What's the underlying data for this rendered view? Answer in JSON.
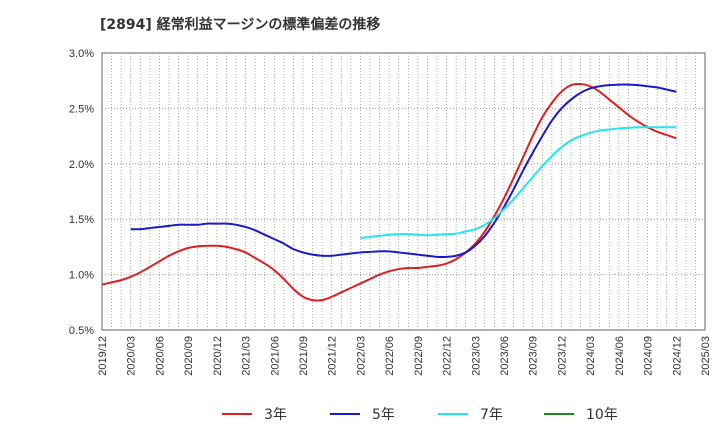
{
  "title": "[2894]  経常利益マージンの標準偏差の推移",
  "chart_data": {
    "type": "line",
    "title": "[2894]  経常利益マージンの標準偏差の推移",
    "xlabel": "",
    "ylabel": "",
    "x_ticks": [
      "2019/12",
      "2020/03",
      "2020/06",
      "2020/09",
      "2020/12",
      "2021/03",
      "2021/06",
      "2021/09",
      "2021/12",
      "2022/03",
      "2022/06",
      "2022/09",
      "2022/12",
      "2023/03",
      "2023/06",
      "2023/09",
      "2023/12",
      "2024/03",
      "2024/06",
      "2024/09",
      "2024/12",
      "2025/03"
    ],
    "y_ticks": [
      "0.5%",
      "1.0%",
      "1.5%",
      "2.0%",
      "2.5%",
      "3.0%"
    ],
    "ylim": [
      0.5,
      3.0
    ],
    "xlim": [
      "2019/12",
      "2025/03"
    ],
    "grid": true,
    "legend_position": "bottom",
    "series": [
      {
        "name": "3年",
        "color": "#e02020",
        "points": [
          [
            "2019/12",
            0.91
          ],
          [
            "2020/01",
            0.93
          ],
          [
            "2020/02",
            0.95
          ],
          [
            "2020/03",
            0.98
          ],
          [
            "2020/04",
            1.02
          ],
          [
            "2020/05",
            1.07
          ],
          [
            "2020/06",
            1.12
          ],
          [
            "2020/07",
            1.17
          ],
          [
            "2020/08",
            1.21
          ],
          [
            "2020/09",
            1.24
          ],
          [
            "2020/10",
            1.255
          ],
          [
            "2020/11",
            1.26
          ],
          [
            "2020/12",
            1.26
          ],
          [
            "2021/01",
            1.25
          ],
          [
            "2021/02",
            1.23
          ],
          [
            "2021/03",
            1.2
          ],
          [
            "2021/04",
            1.15
          ],
          [
            "2021/05",
            1.1
          ],
          [
            "2021/06",
            1.04
          ],
          [
            "2021/07",
            0.96
          ],
          [
            "2021/08",
            0.87
          ],
          [
            "2021/09",
            0.8
          ],
          [
            "2021/10",
            0.77
          ],
          [
            "2021/11",
            0.77
          ],
          [
            "2021/12",
            0.8
          ],
          [
            "2022/01",
            0.84
          ],
          [
            "2022/02",
            0.88
          ],
          [
            "2022/03",
            0.92
          ],
          [
            "2022/04",
            0.96
          ],
          [
            "2022/05",
            1.0
          ],
          [
            "2022/06",
            1.03
          ],
          [
            "2022/07",
            1.05
          ],
          [
            "2022/08",
            1.06
          ],
          [
            "2022/09",
            1.06
          ],
          [
            "2022/10",
            1.07
          ],
          [
            "2022/11",
            1.08
          ],
          [
            "2022/12",
            1.1
          ],
          [
            "2023/01",
            1.14
          ],
          [
            "2023/02",
            1.2
          ],
          [
            "2023/03",
            1.28
          ],
          [
            "2023/04",
            1.39
          ],
          [
            "2023/05",
            1.53
          ],
          [
            "2023/06",
            1.69
          ],
          [
            "2023/07",
            1.87
          ],
          [
            "2023/08",
            2.06
          ],
          [
            "2023/09",
            2.25
          ],
          [
            "2023/10",
            2.42
          ],
          [
            "2023/11",
            2.55
          ],
          [
            "2023/12",
            2.65
          ],
          [
            "2024/01",
            2.71
          ],
          [
            "2024/02",
            2.72
          ],
          [
            "2024/03",
            2.7
          ],
          [
            "2024/04",
            2.65
          ],
          [
            "2024/05",
            2.58
          ],
          [
            "2024/06",
            2.51
          ],
          [
            "2024/07",
            2.44
          ],
          [
            "2024/08",
            2.38
          ],
          [
            "2024/09",
            2.33
          ],
          [
            "2024/10",
            2.29
          ],
          [
            "2024/11",
            2.26
          ],
          [
            "2024/12",
            2.23
          ]
        ]
      },
      {
        "name": "5年",
        "color": "#1a1ac8",
        "points": [
          [
            "2020/03",
            1.41
          ],
          [
            "2020/04",
            1.41
          ],
          [
            "2020/05",
            1.42
          ],
          [
            "2020/06",
            1.43
          ],
          [
            "2020/07",
            1.44
          ],
          [
            "2020/08",
            1.45
          ],
          [
            "2020/09",
            1.45
          ],
          [
            "2020/10",
            1.45
          ],
          [
            "2020/11",
            1.46
          ],
          [
            "2020/12",
            1.46
          ],
          [
            "2021/01",
            1.46
          ],
          [
            "2021/02",
            1.45
          ],
          [
            "2021/03",
            1.43
          ],
          [
            "2021/04",
            1.4
          ],
          [
            "2021/05",
            1.36
          ],
          [
            "2021/06",
            1.32
          ],
          [
            "2021/07",
            1.28
          ],
          [
            "2021/08",
            1.23
          ],
          [
            "2021/09",
            1.2
          ],
          [
            "2021/10",
            1.18
          ],
          [
            "2021/11",
            1.17
          ],
          [
            "2021/12",
            1.17
          ],
          [
            "2022/01",
            1.18
          ],
          [
            "2022/02",
            1.19
          ],
          [
            "2022/03",
            1.2
          ],
          [
            "2022/04",
            1.205
          ],
          [
            "2022/05",
            1.21
          ],
          [
            "2022/06",
            1.21
          ],
          [
            "2022/07",
            1.2
          ],
          [
            "2022/08",
            1.19
          ],
          [
            "2022/09",
            1.18
          ],
          [
            "2022/10",
            1.17
          ],
          [
            "2022/11",
            1.16
          ],
          [
            "2022/12",
            1.16
          ],
          [
            "2023/01",
            1.17
          ],
          [
            "2023/02",
            1.2
          ],
          [
            "2023/03",
            1.26
          ],
          [
            "2023/04",
            1.35
          ],
          [
            "2023/05",
            1.47
          ],
          [
            "2023/06",
            1.61
          ],
          [
            "2023/07",
            1.77
          ],
          [
            "2023/08",
            1.94
          ],
          [
            "2023/09",
            2.1
          ],
          [
            "2023/10",
            2.25
          ],
          [
            "2023/11",
            2.39
          ],
          [
            "2023/12",
            2.5
          ],
          [
            "2024/01",
            2.58
          ],
          [
            "2024/02",
            2.64
          ],
          [
            "2024/03",
            2.68
          ],
          [
            "2024/04",
            2.7
          ],
          [
            "2024/05",
            2.71
          ],
          [
            "2024/06",
            2.715
          ],
          [
            "2024/07",
            2.715
          ],
          [
            "2024/08",
            2.71
          ],
          [
            "2024/09",
            2.7
          ],
          [
            "2024/10",
            2.69
          ],
          [
            "2024/11",
            2.67
          ],
          [
            "2024/12",
            2.65
          ]
        ]
      },
      {
        "name": "7年",
        "color": "#22e6f0",
        "points": [
          [
            "2022/03",
            1.33
          ],
          [
            "2022/04",
            1.34
          ],
          [
            "2022/05",
            1.35
          ],
          [
            "2022/06",
            1.36
          ],
          [
            "2022/07",
            1.365
          ],
          [
            "2022/08",
            1.365
          ],
          [
            "2022/09",
            1.36
          ],
          [
            "2022/10",
            1.355
          ],
          [
            "2022/11",
            1.36
          ],
          [
            "2022/12",
            1.365
          ],
          [
            "2023/01",
            1.37
          ],
          [
            "2023/02",
            1.39
          ],
          [
            "2023/03",
            1.41
          ],
          [
            "2023/04",
            1.45
          ],
          [
            "2023/05",
            1.51
          ],
          [
            "2023/06",
            1.59
          ],
          [
            "2023/07",
            1.68
          ],
          [
            "2023/08",
            1.78
          ],
          [
            "2023/09",
            1.88
          ],
          [
            "2023/10",
            1.98
          ],
          [
            "2023/11",
            2.07
          ],
          [
            "2023/12",
            2.15
          ],
          [
            "2024/01",
            2.21
          ],
          [
            "2024/02",
            2.25
          ],
          [
            "2024/03",
            2.28
          ],
          [
            "2024/04",
            2.3
          ],
          [
            "2024/05",
            2.31
          ],
          [
            "2024/06",
            2.32
          ],
          [
            "2024/07",
            2.325
          ],
          [
            "2024/08",
            2.33
          ],
          [
            "2024/09",
            2.33
          ],
          [
            "2024/10",
            2.33
          ],
          [
            "2024/11",
            2.33
          ],
          [
            "2024/12",
            2.33
          ]
        ]
      },
      {
        "name": "10年",
        "color": "#1a8a1a",
        "points": []
      }
    ]
  }
}
